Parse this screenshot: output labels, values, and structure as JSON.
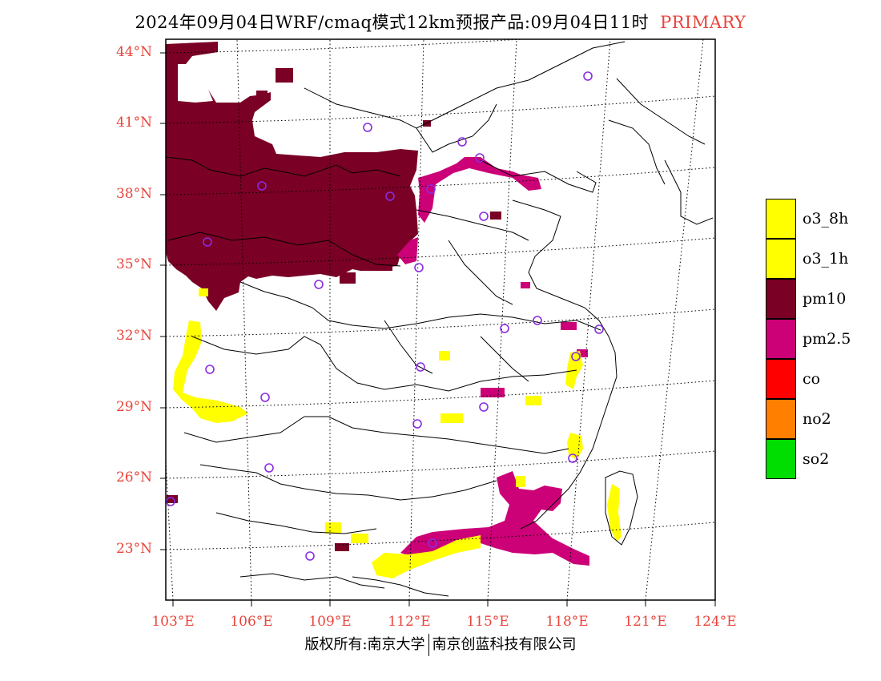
{
  "title": {
    "main": "2024年09月04日WRF/cmaq模式12km预报产品:09月04日11时",
    "tag": "PRIMARY"
  },
  "axes": {
    "lat_labels": [
      "44°N",
      "41°N",
      "38°N",
      "35°N",
      "32°N",
      "29°N",
      "26°N",
      "23°N"
    ],
    "lon_labels": [
      "103°E",
      "106°E",
      "109°E",
      "112°E",
      "115°E",
      "118°E",
      "121°E",
      "124°E"
    ]
  },
  "legend": [
    {
      "label": "o3_8h",
      "color": "#ffff00"
    },
    {
      "label": "o3_1h",
      "color": "#ffff00"
    },
    {
      "label": "pm10",
      "color": "#7a0026"
    },
    {
      "label": "pm2.5",
      "color": "#cc0077"
    },
    {
      "label": "co",
      "color": "#ff0000"
    },
    {
      "label": "no2",
      "color": "#ff7f00"
    },
    {
      "label": "so2",
      "color": "#00dd00"
    }
  ],
  "colors": {
    "pm10": "#7a0026",
    "pm25": "#cc0077",
    "o3": "#ffff00",
    "station_marker": "#8a2be2",
    "axis_label": "#e8453c"
  },
  "footer": {
    "left": "版权所有:南京大学",
    "right": "南京创蓝科技有限公司"
  }
}
